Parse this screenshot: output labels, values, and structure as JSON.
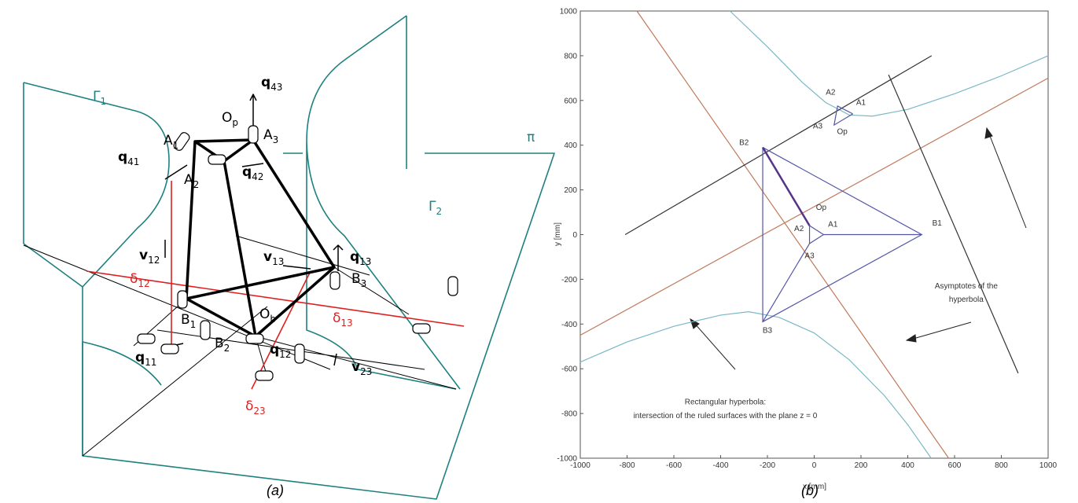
{
  "panel_a": {
    "caption": "(a)",
    "labels": [
      {
        "base": "Γ",
        "sub": "1"
      },
      {
        "base": "Γ",
        "sub": "2"
      },
      {
        "base": "π"
      },
      {
        "base": "A",
        "sub": "1"
      },
      {
        "base": "A",
        "sub": "2"
      },
      {
        "base": "A",
        "sub": "3"
      },
      {
        "base": "O",
        "sub": "p"
      },
      {
        "base": "q",
        "sub": "43"
      },
      {
        "base": "q",
        "sub": "41"
      },
      {
        "base": "q",
        "sub": "42"
      },
      {
        "base": "q",
        "sub": "13"
      },
      {
        "base": "q",
        "sub": "11"
      },
      {
        "base": "q",
        "sub": "12"
      },
      {
        "base": "v",
        "sub": "12"
      },
      {
        "base": "v",
        "sub": "13"
      },
      {
        "base": "v",
        "sub": "23"
      },
      {
        "base": "B",
        "sub": "1"
      },
      {
        "base": "B",
        "sub": "2"
      },
      {
        "base": "B",
        "sub": "3"
      },
      {
        "base": "O",
        "sub": "b"
      },
      {
        "base": "δ",
        "sub": "12"
      },
      {
        "base": "δ",
        "sub": "13"
      },
      {
        "base": "δ",
        "sub": "23"
      }
    ]
  },
  "chart_data": {
    "type": "line",
    "caption": "(b)",
    "x_label": "x [mm]",
    "y_label": "y [mm]",
    "xlim": [
      -1000,
      1000
    ],
    "ylim": [
      -1000,
      1000
    ],
    "xticks": [
      -1000,
      -800,
      -600,
      -400,
      -200,
      0,
      200,
      400,
      600,
      800,
      1000
    ],
    "yticks": [
      -1000,
      -800,
      -600,
      -400,
      -200,
      0,
      200,
      400,
      600,
      800,
      1000
    ],
    "series": [
      {
        "color": "#7ab8c6",
        "x": [
          -360,
          -200,
          -50,
          50,
          150,
          250,
          400,
          600,
          800,
          1000
        ],
        "values": [
          1000,
          840,
          680,
          590,
          535,
          530,
          560,
          630,
          710,
          800
        ]
      },
      {
        "color": "#7ab8c6",
        "x": [
          -1000,
          -800,
          -600,
          -400,
          -280,
          -150,
          0,
          150,
          300,
          400,
          500
        ],
        "values": [
          -570,
          -480,
          -410,
          -360,
          -345,
          -370,
          -440,
          -560,
          -720,
          -850,
          -1000
        ]
      },
      {
        "color": "#c07a5c",
        "x": [
          -1000,
          1000
        ],
        "values": [
          -450,
          700
        ]
      },
      {
        "color": "#c07a5c",
        "x": [
          -758,
          575
        ],
        "values": [
          1000,
          -1000
        ]
      },
      {
        "color": "#333333",
        "x": [
          -808,
          502
        ],
        "values": [
          0,
          800
        ]
      },
      {
        "color": "#333333",
        "x": [
          318,
          872
        ],
        "values": [
          715,
          -620
        ]
      },
      {
        "color": "#5555a8",
        "x": [
          -220,
          460,
          -220,
          -220
        ],
        "values": [
          390,
          0,
          -390,
          390
        ]
      },
      {
        "color": "#5555a8",
        "x": [
          40,
          460
        ],
        "values": [
          0,
          0
        ]
      },
      {
        "color": "#5555a8",
        "x": [
          -220,
          -20
        ],
        "values": [
          -390,
          -40
        ]
      },
      {
        "color": "#553388",
        "x": [
          -220,
          -20
        ],
        "values": [
          390,
          40
        ]
      },
      {
        "color": "#5555a8",
        "x": [
          40,
          -20,
          -20,
          40
        ],
        "values": [
          0,
          40,
          -40,
          0
        ]
      },
      {
        "color": "#5555a8",
        "x": [
          165,
          100,
          85,
          165
        ],
        "values": [
          540,
          575,
          490,
          540
        ]
      }
    ],
    "annotations": [
      {
        "text": "A2",
        "x": -65,
        "y": 15
      },
      {
        "text": "A1",
        "x": 80,
        "y": 35
      },
      {
        "text": "A3",
        "x": -20,
        "y": -105
      },
      {
        "text": "Op",
        "x": 30,
        "y": 110
      },
      {
        "text": "B2",
        "x": -300,
        "y": 400
      },
      {
        "text": "B1",
        "x": 525,
        "y": 40
      },
      {
        "text": "B3",
        "x": -200,
        "y": -440
      },
      {
        "text": "A2",
        "x": 70,
        "y": 625
      },
      {
        "text": "A1",
        "x": 200,
        "y": 580
      },
      {
        "text": "A3",
        "x": 15,
        "y": 475
      },
      {
        "text": "Op",
        "x": 120,
        "y": 450
      },
      {
        "text": "Asymptotes of the",
        "x": 650,
        "y": -240
      },
      {
        "text": "hyperbola",
        "x": 650,
        "y": -300
      },
      {
        "text": "Rectangular hyperbola:",
        "x": -380,
        "y": -760
      },
      {
        "text": "intersection of the ruled surfaces with the plane z = 0",
        "x": -380,
        "y": -820
      }
    ]
  }
}
